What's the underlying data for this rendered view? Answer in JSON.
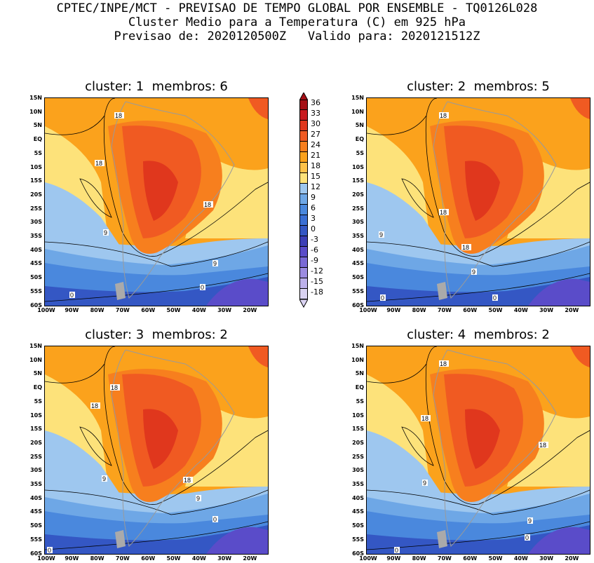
{
  "header": {
    "line1": "CPTEC/INPE/MCT - PREVISAO DE TEMPO GLOBAL POR ENSEMBLE - TQ0126L028",
    "line2": "Cluster Medio para a Temperatura (C) em 925 hPa",
    "line3": "Previsao de: 2020120500Z   Valido para: 2020121512Z"
  },
  "panels": [
    {
      "title": "cluster: 1  membros: 6",
      "contour_labels": [
        "18",
        "18",
        "18",
        "9",
        "9",
        "0",
        "0"
      ]
    },
    {
      "title": "cluster: 2  membros: 5",
      "contour_labels": [
        "18",
        "18",
        "18",
        "9",
        "9",
        "0",
        "0"
      ]
    },
    {
      "title": "cluster: 3  membros: 2",
      "contour_labels": [
        "18",
        "18",
        "18",
        "9",
        "9",
        "0",
        "0"
      ]
    },
    {
      "title": "cluster: 4  membros: 2",
      "contour_labels": [
        "18",
        "18",
        "18",
        "9",
        "9",
        "0",
        "0"
      ]
    }
  ],
  "axes": {
    "y_ticks": [
      "15N",
      "10N",
      "5N",
      "EQ",
      "5S",
      "10S",
      "15S",
      "20S",
      "25S",
      "30S",
      "35S",
      "40S",
      "45S",
      "50S",
      "55S",
      "60S"
    ],
    "x_ticks": [
      "100W",
      "90W",
      "80W",
      "70W",
      "60W",
      "50W",
      "40W",
      "30W",
      "20W"
    ]
  },
  "colorbar": {
    "labels": [
      "36",
      "33",
      "30",
      "27",
      "24",
      "21",
      "18",
      "15",
      "12",
      "9",
      "6",
      "3",
      "0",
      "-3",
      "-6",
      "-9",
      "-12",
      "-15",
      "-18"
    ],
    "colors": [
      "#a50f15",
      "#c81a1e",
      "#e0371d",
      "#f05a22",
      "#f77f1e",
      "#fba21c",
      "#fdc24a",
      "#fde27a",
      "#9ec7ef",
      "#6ea7e6",
      "#4a88dd",
      "#3a6fd4",
      "#3457c4",
      "#3c3fb6",
      "#5a4cc9",
      "#7a6ad6",
      "#9c8ce1",
      "#bcb0ea",
      "#dad3f2"
    ]
  },
  "map_colors": {
    "very_hot": "#e0371d",
    "hot": "#f05a22",
    "warm": "#f77f1e",
    "mild": "#fba21c",
    "cool": "#fde27a",
    "cold_light": "#9ec7ef",
    "cold": "#6ea7e6",
    "colder": "#4a88dd",
    "coldest": "#3457c4",
    "frozen": "#5a4cc9",
    "land_line": "#9a9a9a"
  }
}
